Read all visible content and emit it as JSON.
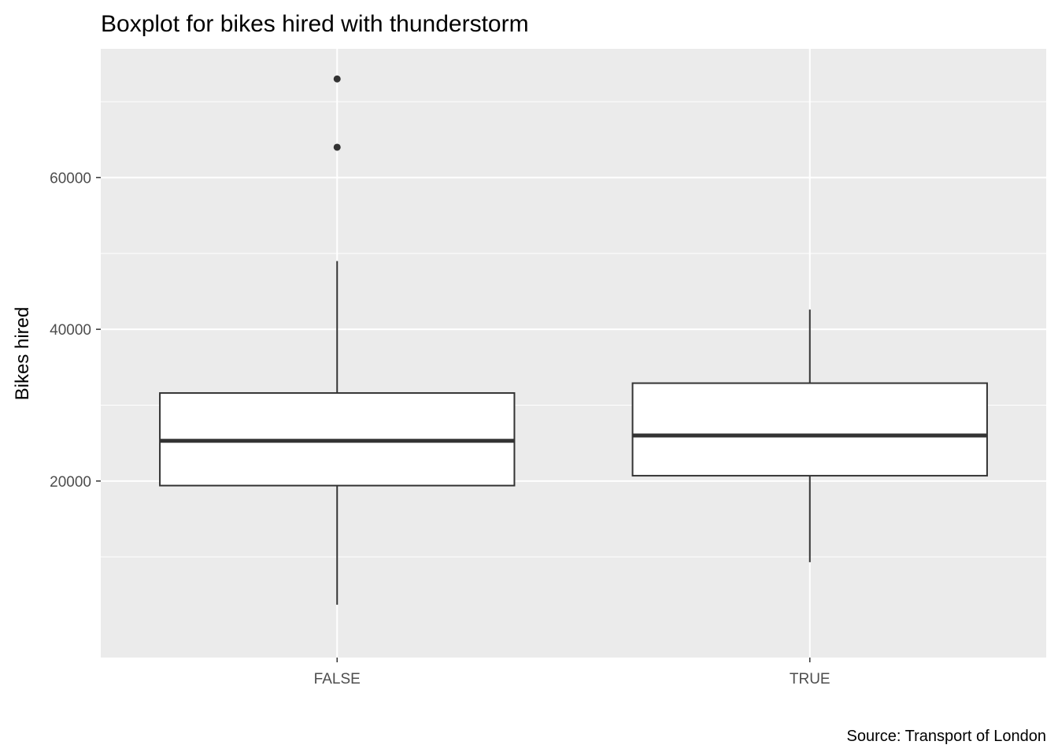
{
  "chart_data": {
    "type": "boxplot",
    "title": "Boxplot for bikes hired with thunderstorm",
    "xlabel": "",
    "ylabel": "Bikes hired",
    "caption": "Source: Transport of London",
    "categories": [
      "FALSE",
      "TRUE"
    ],
    "boxes": [
      {
        "category": "FALSE",
        "whisker_low": 3700,
        "q1": 19400,
        "median": 25300,
        "q3": 31600,
        "whisker_high": 49000,
        "outliers": [
          64000,
          73000
        ]
      },
      {
        "category": "TRUE",
        "whisker_low": 9300,
        "q1": 20700,
        "median": 26000,
        "q3": 32900,
        "whisker_high": 42600,
        "outliers": []
      }
    ],
    "y_ticks": [
      20000,
      40000,
      60000
    ],
    "y_tick_labels": [
      "20000",
      "40000",
      "60000"
    ],
    "ylim": [
      -3270,
      76970
    ],
    "grid": true,
    "colors": {
      "panel_background": "#ebebeb",
      "grid": "#ffffff",
      "box_fill": "#ffffff",
      "box_stroke": "#333333",
      "tick_text": "#4d4d4d"
    }
  }
}
